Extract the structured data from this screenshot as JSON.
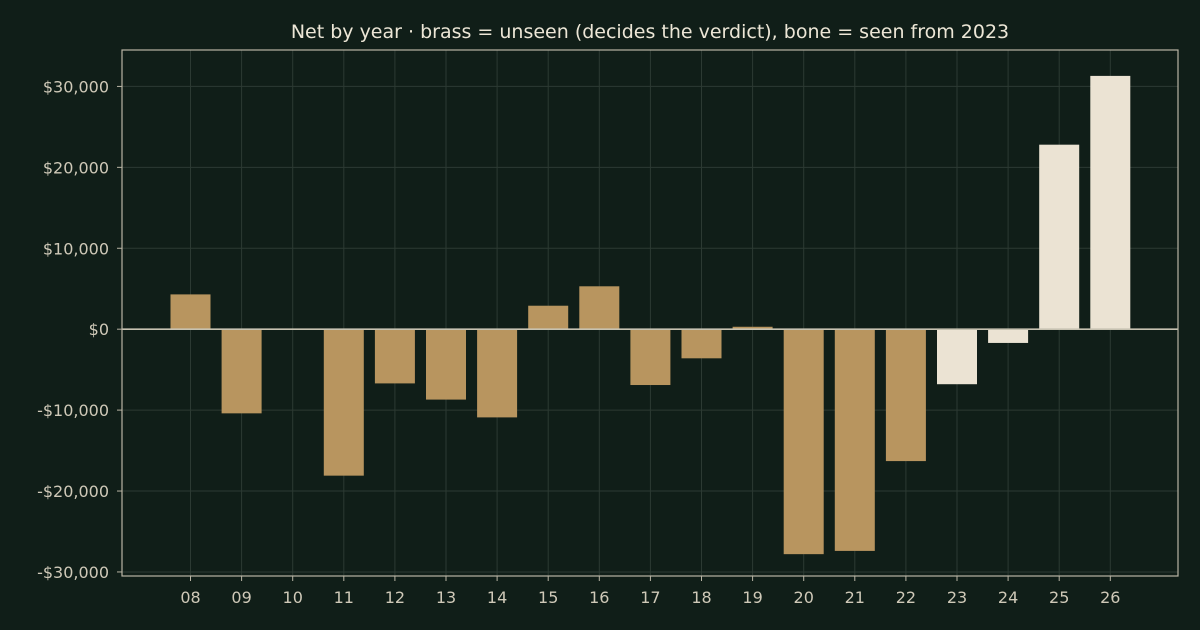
{
  "chart_data": {
    "type": "bar",
    "title": "Net by year  ·  brass = unseen (decides the verdict), bone = seen from 2023",
    "xlabel": "",
    "ylabel": "",
    "categories": [
      "08",
      "09",
      "10",
      "11",
      "12",
      "13",
      "14",
      "15",
      "16",
      "17",
      "18",
      "19",
      "20",
      "21",
      "22",
      "23",
      "24",
      "25",
      "26"
    ],
    "values": [
      4300,
      -10400,
      0,
      -18100,
      -6700,
      -8700,
      -10900,
      2900,
      5300,
      -6900,
      -3600,
      300,
      -27800,
      -27400,
      -16300,
      -6800,
      -1700,
      22800,
      31300
    ],
    "groups": [
      "unseen",
      "unseen",
      "unseen",
      "unseen",
      "unseen",
      "unseen",
      "unseen",
      "unseen",
      "unseen",
      "unseen",
      "unseen",
      "unseen",
      "unseen",
      "unseen",
      "unseen",
      "seen",
      "seen",
      "seen",
      "seen"
    ],
    "colors": {
      "unseen": "#b8955f",
      "seen": "#ebe3d3"
    },
    "ylim": [
      -30500,
      34500
    ],
    "yticks": [
      30000,
      20000,
      10000,
      0,
      -10000,
      -20000,
      -30000
    ],
    "ytick_labels": [
      "$30,000",
      "$20,000",
      "$10,000",
      "$0",
      "-$10,000",
      "-$20,000",
      "-$30,000"
    ],
    "grid": true,
    "legend": "none"
  }
}
